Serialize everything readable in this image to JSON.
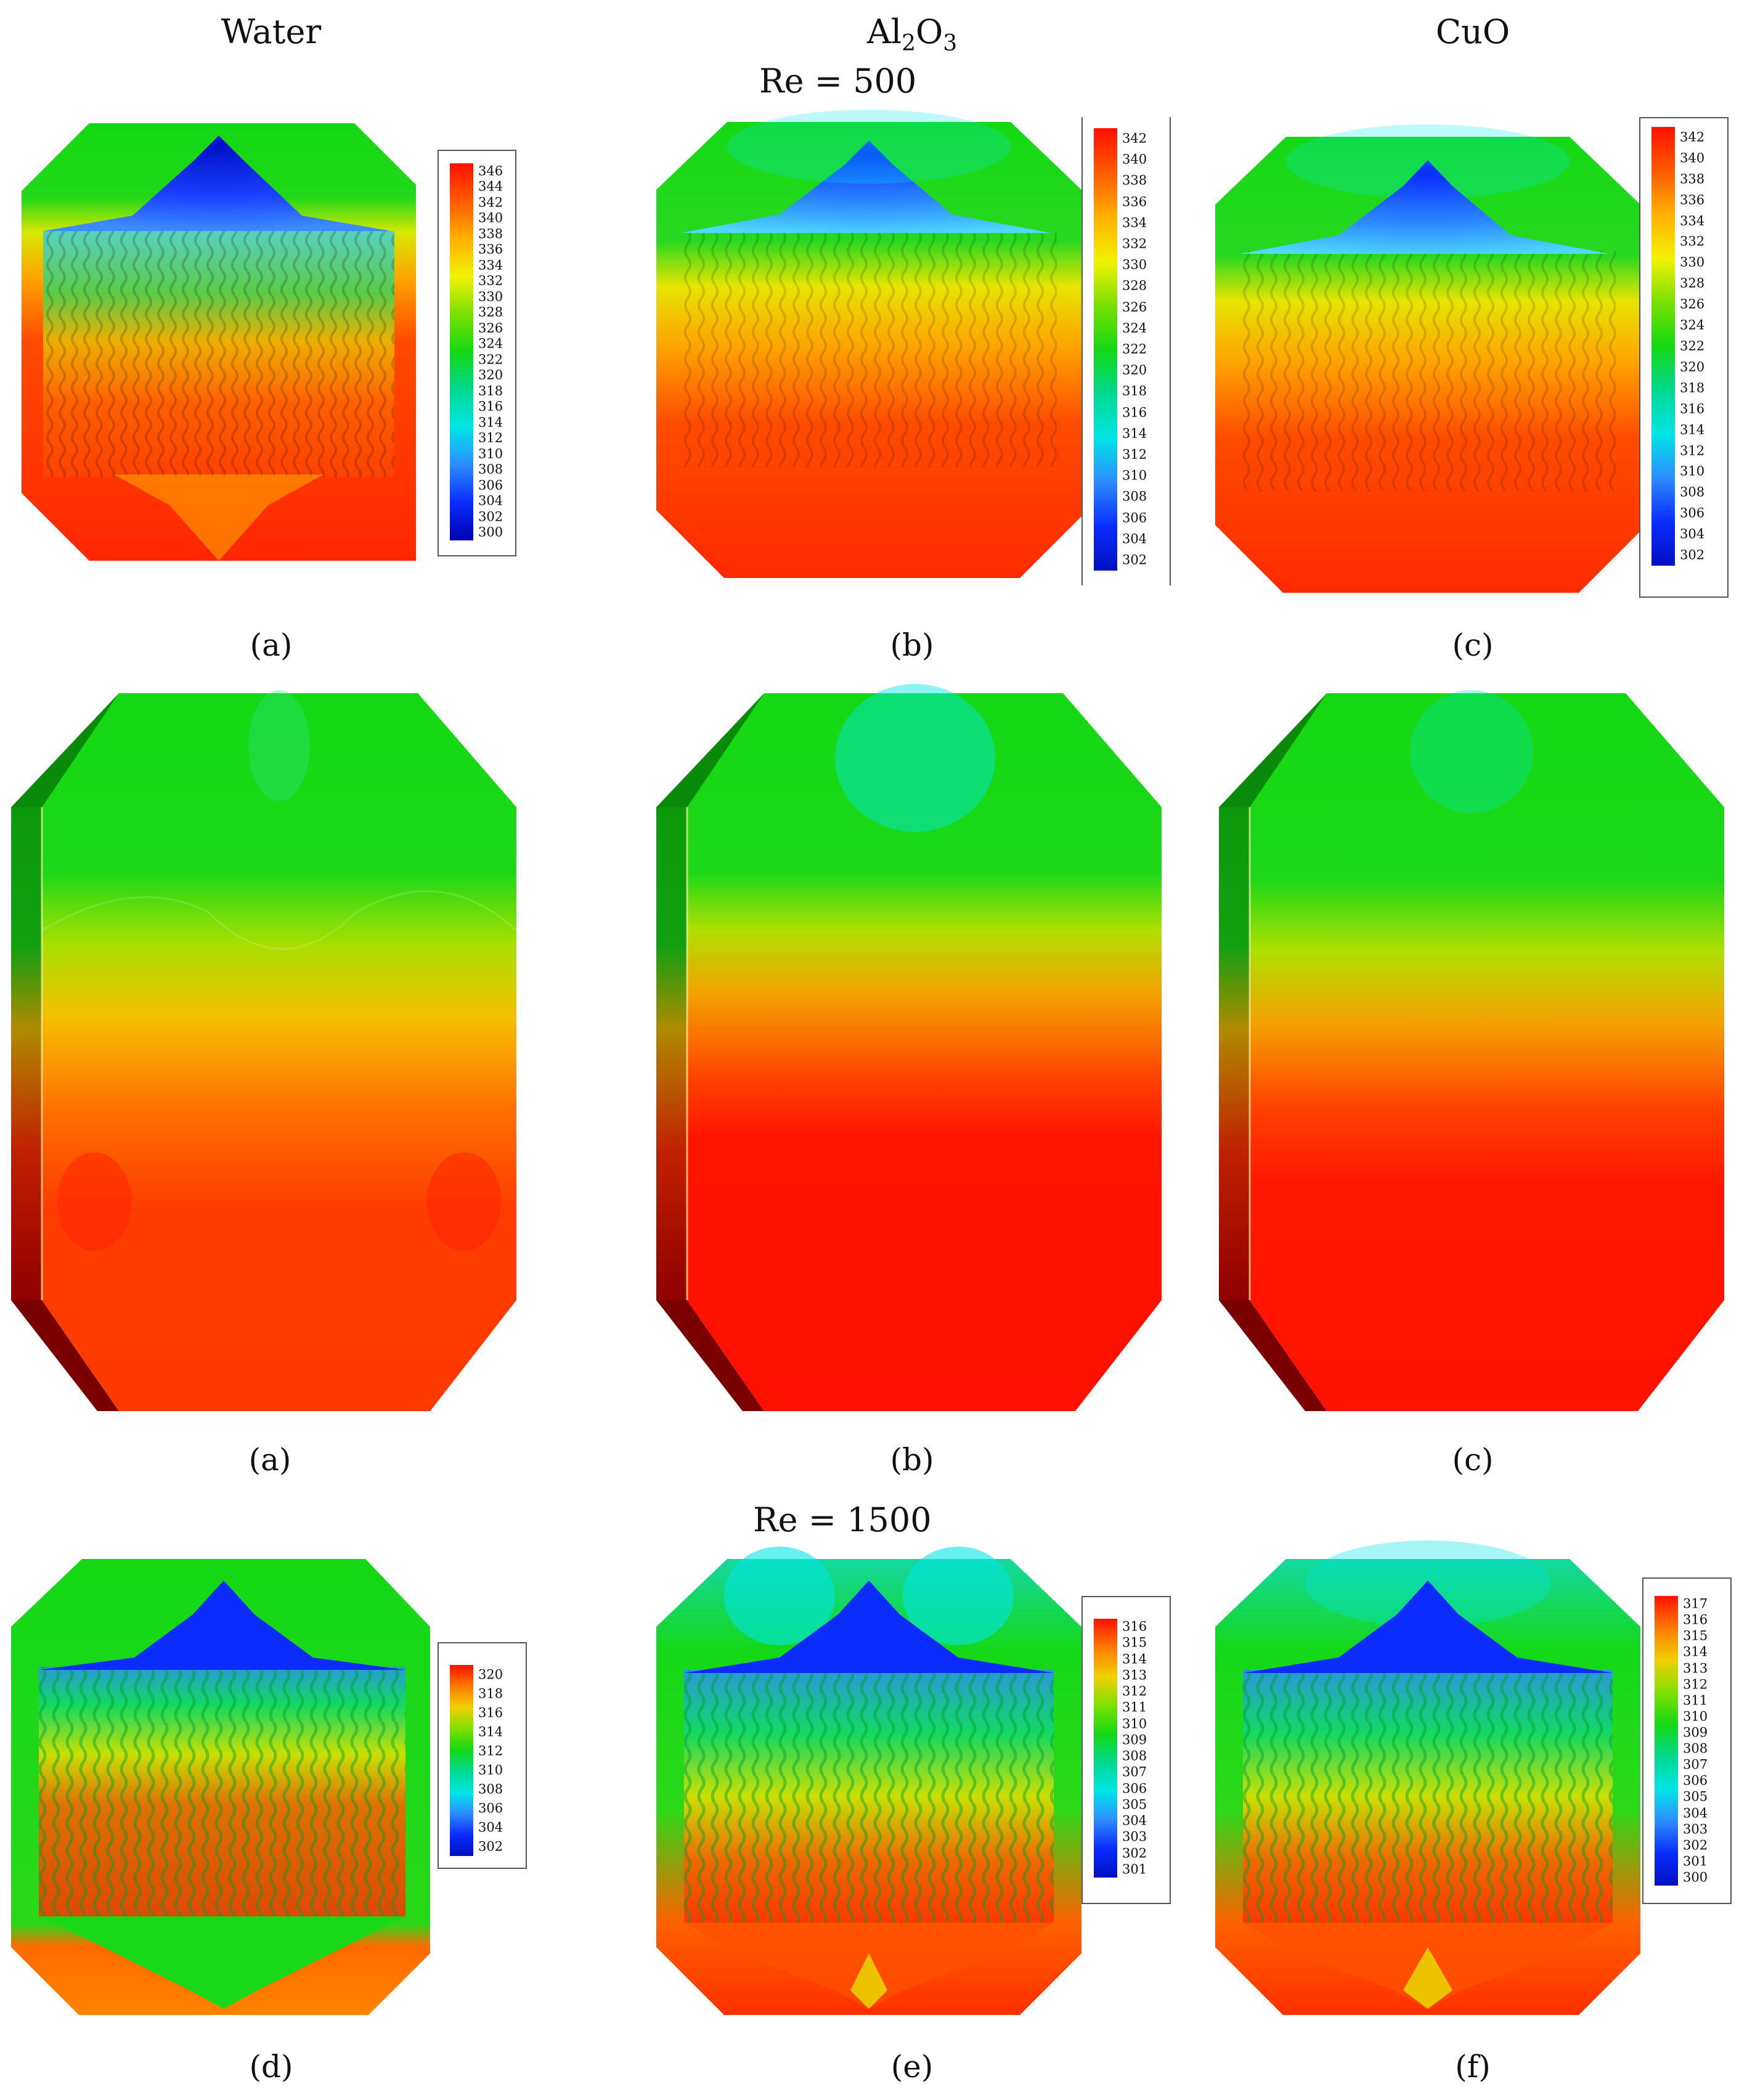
{
  "headers": {
    "water": "Water",
    "al2o3_base": "Al",
    "al2o3_sub1": "2",
    "al2o3_mid": "O",
    "al2o3_sub2": "3",
    "cuo": "CuO"
  },
  "re_labels": {
    "re500": "Re = 500",
    "re1500": "Re = 1500"
  },
  "captions": {
    "row1": [
      "(a)",
      "(b)",
      "(c)"
    ],
    "row2": [
      "(a)",
      "(b)",
      "(c)"
    ],
    "row3": [
      "(d)",
      "(e)",
      "(f)"
    ]
  },
  "legends": {
    "a": [
      "346",
      "344",
      "342",
      "340",
      "338",
      "336",
      "334",
      "332",
      "330",
      "328",
      "326",
      "324",
      "322",
      "320",
      "318",
      "316",
      "314",
      "312",
      "310",
      "308",
      "306",
      "304",
      "302",
      "300"
    ],
    "b": [
      "342",
      "340",
      "338",
      "336",
      "334",
      "332",
      "330",
      "328",
      "326",
      "324",
      "322",
      "320",
      "318",
      "316",
      "314",
      "312",
      "310",
      "308",
      "306",
      "304",
      "302"
    ],
    "c": [
      "342",
      "340",
      "338",
      "336",
      "334",
      "332",
      "330",
      "328",
      "326",
      "324",
      "322",
      "320",
      "318",
      "316",
      "314",
      "312",
      "310",
      "308",
      "306",
      "304",
      "302"
    ],
    "d": [
      "320",
      "318",
      "316",
      "314",
      "312",
      "310",
      "308",
      "306",
      "304",
      "302"
    ],
    "e": [
      "316",
      "315",
      "314",
      "313",
      "312",
      "311",
      "310",
      "309",
      "308",
      "307",
      "306",
      "305",
      "304",
      "303",
      "302",
      "301"
    ],
    "f": [
      "317",
      "316",
      "315",
      "314",
      "313",
      "312",
      "311",
      "310",
      "309",
      "308",
      "307",
      "306",
      "305",
      "304",
      "303",
      "302",
      "301",
      "300"
    ]
  },
  "colors": {
    "red": "#ff1a00",
    "orange": "#ff7a00",
    "yellow": "#f2f200",
    "green": "#14d814",
    "cyan": "#00e6e6",
    "blue": "#0a2cff",
    "darkblue": "#0010c8"
  }
}
